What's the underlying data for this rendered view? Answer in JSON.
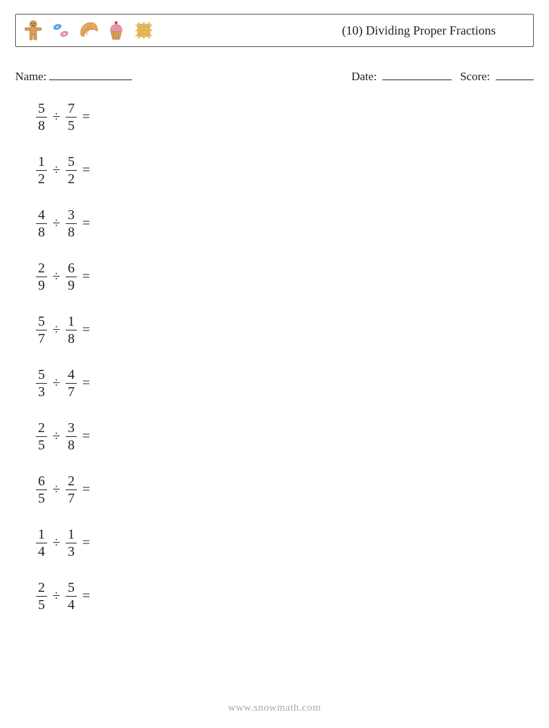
{
  "header": {
    "title": "(10) Dividing Proper Fractions",
    "icon_colors": {
      "gingerbread": "#d9a15a",
      "candy1": "#5aa6e6",
      "candy2": "#e98fb0",
      "croissant": "#e3a85b",
      "cupcake_top": "#e98fb0",
      "cupcake_base": "#d9a15a",
      "cupcake_cherry": "#d23b3b",
      "cracker": "#e7b95a"
    }
  },
  "labels": {
    "name": "Name:",
    "date": "Date:",
    "score": "Score:"
  },
  "style": {
    "division_sign": "÷",
    "equals_sign": "=",
    "text_color": "#222222",
    "border_color": "#555555",
    "footer_color": "#a9a9a9",
    "background_color": "#ffffff",
    "problem_font_size": 20,
    "title_font_size": 18,
    "label_font_size": 17
  },
  "problems": [
    {
      "a_num": "5",
      "a_den": "8",
      "b_num": "7",
      "b_den": "5"
    },
    {
      "a_num": "1",
      "a_den": "2",
      "b_num": "5",
      "b_den": "2"
    },
    {
      "a_num": "4",
      "a_den": "8",
      "b_num": "3",
      "b_den": "8"
    },
    {
      "a_num": "2",
      "a_den": "9",
      "b_num": "6",
      "b_den": "9"
    },
    {
      "a_num": "5",
      "a_den": "7",
      "b_num": "1",
      "b_den": "8"
    },
    {
      "a_num": "5",
      "a_den": "3",
      "b_num": "4",
      "b_den": "7"
    },
    {
      "a_num": "2",
      "a_den": "5",
      "b_num": "3",
      "b_den": "8"
    },
    {
      "a_num": "6",
      "a_den": "5",
      "b_num": "2",
      "b_den": "7"
    },
    {
      "a_num": "1",
      "a_den": "4",
      "b_num": "1",
      "b_den": "3"
    },
    {
      "a_num": "2",
      "a_den": "5",
      "b_num": "5",
      "b_den": "4"
    }
  ],
  "footer": "www.snowmath.com"
}
